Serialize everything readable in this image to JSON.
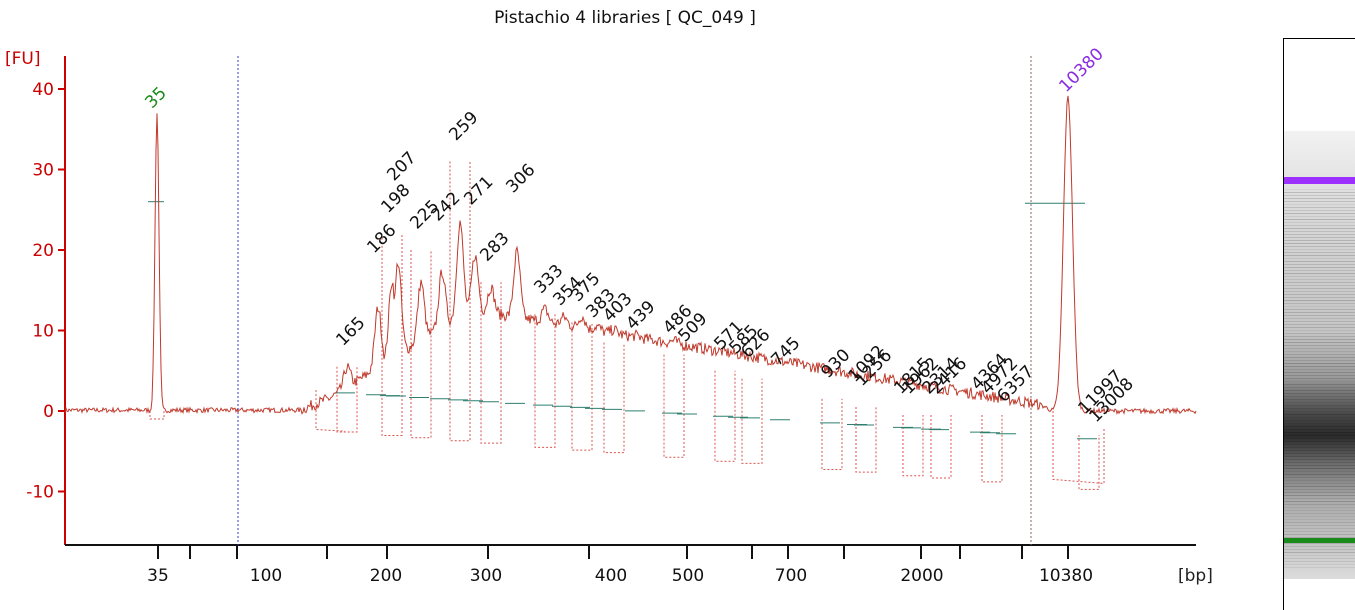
{
  "chart_data": {
    "type": "line",
    "title": "Pistachio 4 libraries  [ QC_049 ]",
    "ylabel": "[FU]",
    "xlabel": "[bp]",
    "ylim": [
      -16,
      45
    ],
    "yticks": [
      -10,
      0,
      10,
      20,
      30,
      40
    ],
    "x_scale": "nonlinear (electropherogram)",
    "xtick_labels": [
      "35",
      "100",
      "200",
      "300",
      "400",
      "500",
      "700",
      "2000",
      "10380"
    ],
    "marker_peaks": [
      {
        "label": "35",
        "fu": 37,
        "color": "#1a8a1a"
      },
      {
        "label": "10380",
        "fu": 39,
        "color": "#8a2be2"
      }
    ],
    "peaks": [
      {
        "label": "165",
        "fu": 7.5
      },
      {
        "label": "186",
        "fu": 19
      },
      {
        "label": "198",
        "fu": 24
      },
      {
        "label": "207",
        "fu": 28
      },
      {
        "label": "225",
        "fu": 22
      },
      {
        "label": "242",
        "fu": 23
      },
      {
        "label": "259",
        "fu": 33
      },
      {
        "label": "271",
        "fu": 25
      },
      {
        "label": "283",
        "fu": 18
      },
      {
        "label": "306",
        "fu": 26.5
      },
      {
        "label": "333",
        "fu": 14
      },
      {
        "label": "354",
        "fu": 12.5
      },
      {
        "label": "375",
        "fu": 13
      },
      {
        "label": "383",
        "fu": 11
      },
      {
        "label": "403",
        "fu": 10.5
      },
      {
        "label": "439",
        "fu": 9.5
      },
      {
        "label": "486",
        "fu": 9
      },
      {
        "label": "509",
        "fu": 8
      },
      {
        "label": "571",
        "fu": 7
      },
      {
        "label": "585",
        "fu": 6.5
      },
      {
        "label": "626",
        "fu": 6
      },
      {
        "label": "745",
        "fu": 5
      },
      {
        "label": "930",
        "fu": 3.5
      },
      {
        "label": "1092",
        "fu": 3
      },
      {
        "label": "1256",
        "fu": 2.5
      },
      {
        "label": "1815",
        "fu": 1.5
      },
      {
        "label": "1962",
        "fu": 1.5
      },
      {
        "label": "2314",
        "fu": 1.5
      },
      {
        "label": "2416",
        "fu": 1.5
      },
      {
        "label": "4364",
        "fu": 2
      },
      {
        "label": "4972",
        "fu": 1.5
      },
      {
        "label": "6357",
        "fu": 0.5
      },
      {
        "label": "11997",
        "fu": -1
      },
      {
        "label": "13008",
        "fu": -2
      }
    ],
    "legend": "none",
    "grid": false,
    "colors": {
      "axis": "#cc0000",
      "trace": "#c0392b",
      "marker_low": "#1a8a1a",
      "marker_high": "#8a2be2",
      "baseline": "#2f7f6f",
      "guide_line": "#3a3acc"
    }
  }
}
